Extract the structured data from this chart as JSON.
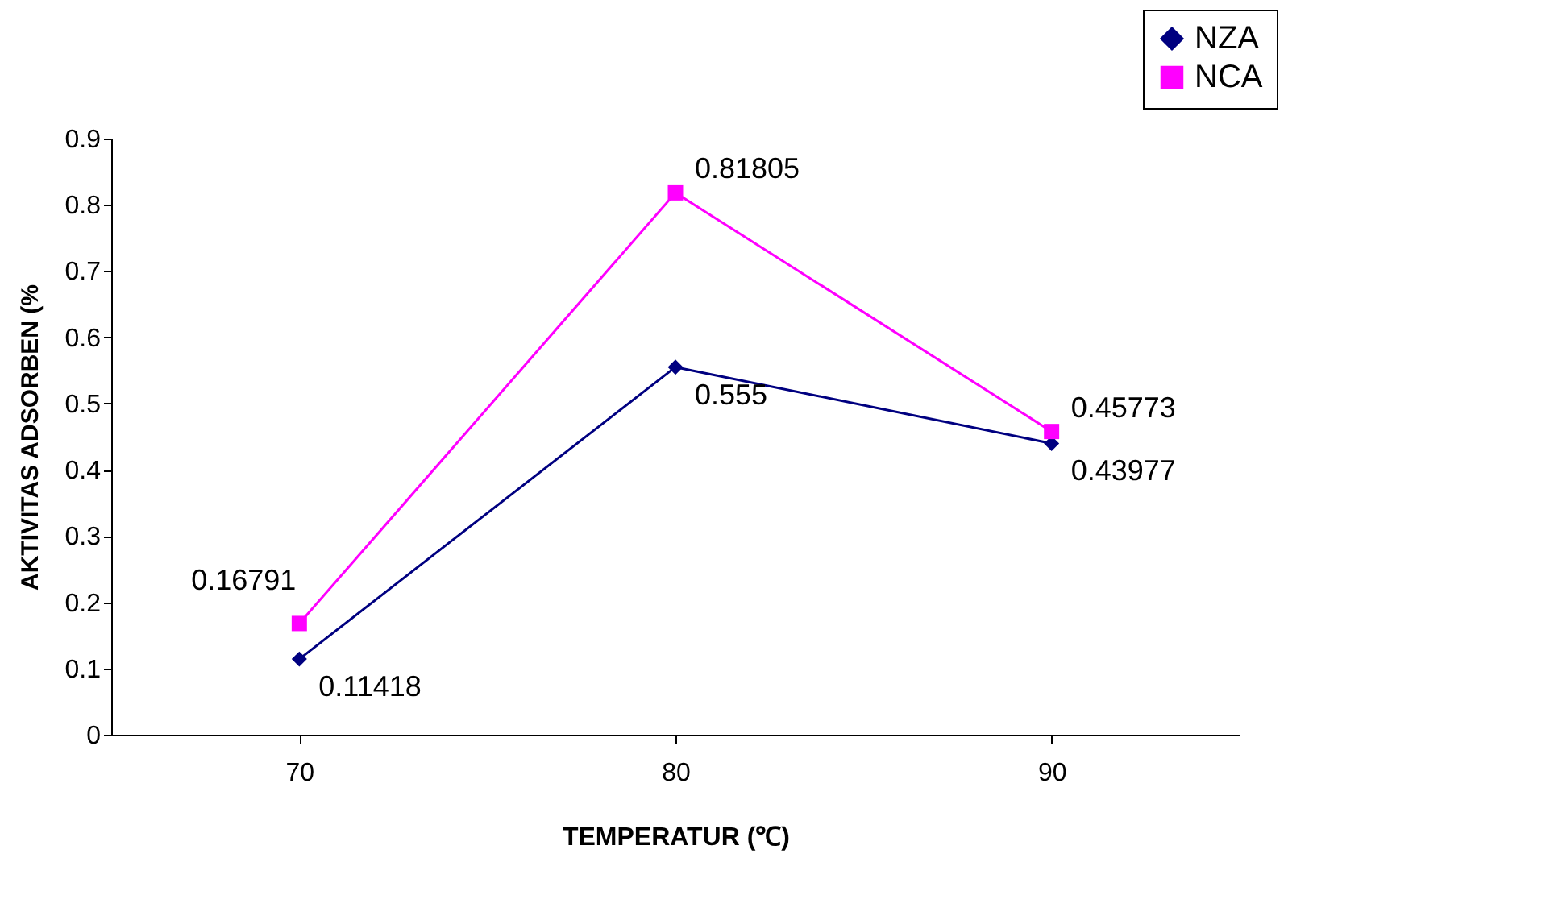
{
  "chart_data": {
    "type": "line",
    "xlabel": "TEMPERATUR (℃)",
    "ylabel": "AKTIVITAS ADSORBEN (%",
    "categories": [
      "70",
      "80",
      "90"
    ],
    "series": [
      {
        "name": "NZA",
        "color": "#000080",
        "marker": "diamond",
        "values": [
          0.11418,
          0.555,
          0.43977
        ]
      },
      {
        "name": "NCA",
        "color": "#ff00ff",
        "marker": "square",
        "values": [
          0.16791,
          0.81805,
          0.45773
        ]
      }
    ],
    "ylim": [
      0,
      0.9
    ],
    "yticks": [
      0,
      0.1,
      0.2,
      0.3,
      0.4,
      0.5,
      0.6,
      0.7,
      0.8,
      0.9
    ],
    "data_labels": true,
    "grid": false,
    "legend": "top right",
    "line_style": "solid"
  }
}
